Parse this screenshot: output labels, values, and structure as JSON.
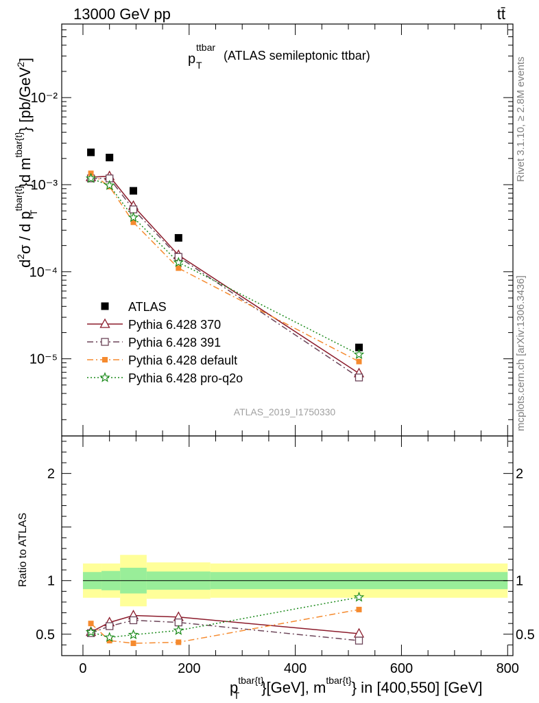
{
  "header": {
    "left": "13000 GeV pp",
    "right": "tt̄"
  },
  "side": {
    "rivet": "Rivet 3.1.10, ≥ 2.8M events",
    "mcplots": "mcplots.cern.ch [arXiv:1306.3436]"
  },
  "chart_data": [
    {
      "type": "scatter",
      "title_main": "p",
      "title_sup": "ttbar",
      "title_sub": "T",
      "title_rest": "(ATLAS semileptonic ttbar)",
      "ylabel": "d²σ / d p_T^{tbar{t}}d m^{tbar{t}} [pb/GeV²]",
      "yscale": "log",
      "ylim": [
        1.3e-06,
        0.07
      ],
      "xlim": [
        -40,
        810
      ],
      "y_ticks": [
        "10⁻⁵",
        "10⁻⁴",
        "10⁻³",
        "10⁻²"
      ],
      "watermark": "ATLAS_2019_I1750330",
      "legend_placement": "bottom-left",
      "series": [
        {
          "name": "ATLAS",
          "color": "#000000",
          "marker": "filled-square",
          "x": [
            15,
            50,
            95,
            180,
            520
          ],
          "y": [
            0.00235,
            0.00205,
            0.00085,
            0.000245,
            1.35e-05
          ]
        },
        {
          "name": "Pythia 6.428 370",
          "color": "#8b1a2a",
          "marker": "open-triangle",
          "line": "solid",
          "x": [
            15,
            50,
            95,
            180,
            520
          ],
          "y": [
            0.00122,
            0.00125,
            0.00057,
            0.000155,
            6.8e-06
          ]
        },
        {
          "name": "Pythia 6.428 391",
          "color": "#6b4458",
          "marker": "open-square",
          "line": "dashdot",
          "x": [
            15,
            50,
            95,
            180,
            520
          ],
          "y": [
            0.00118,
            0.00118,
            0.00052,
            0.000148,
            6.1e-06
          ]
        },
        {
          "name": "Pythia 6.428 default",
          "color": "#f58a2e",
          "marker": "filled-square-small",
          "line": "dashdot",
          "x": [
            15,
            50,
            95,
            180,
            520
          ],
          "y": [
            0.00135,
            0.00095,
            0.00037,
            0.00011,
            9.3e-06
          ]
        },
        {
          "name": "Pythia 6.428 pro-q2o",
          "color": "#1a8a1a",
          "marker": "open-star",
          "line": "dotted",
          "x": [
            15,
            50,
            95,
            180,
            520
          ],
          "y": [
            0.00118,
            0.00098,
            0.00042,
            0.000128,
            1.12e-05
          ]
        }
      ]
    },
    {
      "type": "line",
      "ylabel": "Ratio to ATLAS",
      "xlabel": "p_T^{tbar{t}}[GeV], m^{tbar{t}} in [400,550] [GeV]",
      "xlim": [
        -40,
        810
      ],
      "ylim": [
        0.3,
        2.35
      ],
      "x_ticks": [
        "0",
        "200",
        "400",
        "600",
        "800"
      ],
      "y_ticks": [
        "0.5",
        "1",
        "2"
      ],
      "bands": [
        {
          "x0": 0,
          "x1": 35,
          "yellow": [
            0.84,
            1.16
          ],
          "green": [
            0.92,
            1.08
          ]
        },
        {
          "x0": 35,
          "x1": 70,
          "yellow": [
            0.84,
            1.16
          ],
          "green": [
            0.91,
            1.09
          ]
        },
        {
          "x0": 70,
          "x1": 120,
          "yellow": [
            0.76,
            1.24
          ],
          "green": [
            0.88,
            1.12
          ]
        },
        {
          "x0": 120,
          "x1": 240,
          "yellow": [
            0.83,
            1.17
          ],
          "green": [
            0.915,
            1.085
          ]
        },
        {
          "x0": 240,
          "x1": 800,
          "yellow": [
            0.84,
            1.16
          ],
          "green": [
            0.92,
            1.08
          ]
        }
      ],
      "series": [
        {
          "name": "Pythia 6.428 370",
          "x": [
            15,
            50,
            95,
            180,
            520
          ],
          "y": [
            0.52,
            0.61,
            0.675,
            0.66,
            0.505
          ]
        },
        {
          "name": "Pythia 6.428 391",
          "x": [
            15,
            50,
            95,
            180,
            520
          ],
          "y": [
            0.51,
            0.575,
            0.63,
            0.61,
            0.44
          ]
        },
        {
          "name": "Pythia 6.428 default",
          "x": [
            15,
            50,
            95,
            180,
            520
          ],
          "y": [
            0.6,
            0.44,
            0.415,
            0.425,
            0.73
          ]
        },
        {
          "name": "Pythia 6.428 pro-q2o",
          "x": [
            15,
            50,
            95,
            180,
            520
          ],
          "y": [
            0.52,
            0.47,
            0.495,
            0.535,
            0.845
          ]
        }
      ]
    }
  ]
}
